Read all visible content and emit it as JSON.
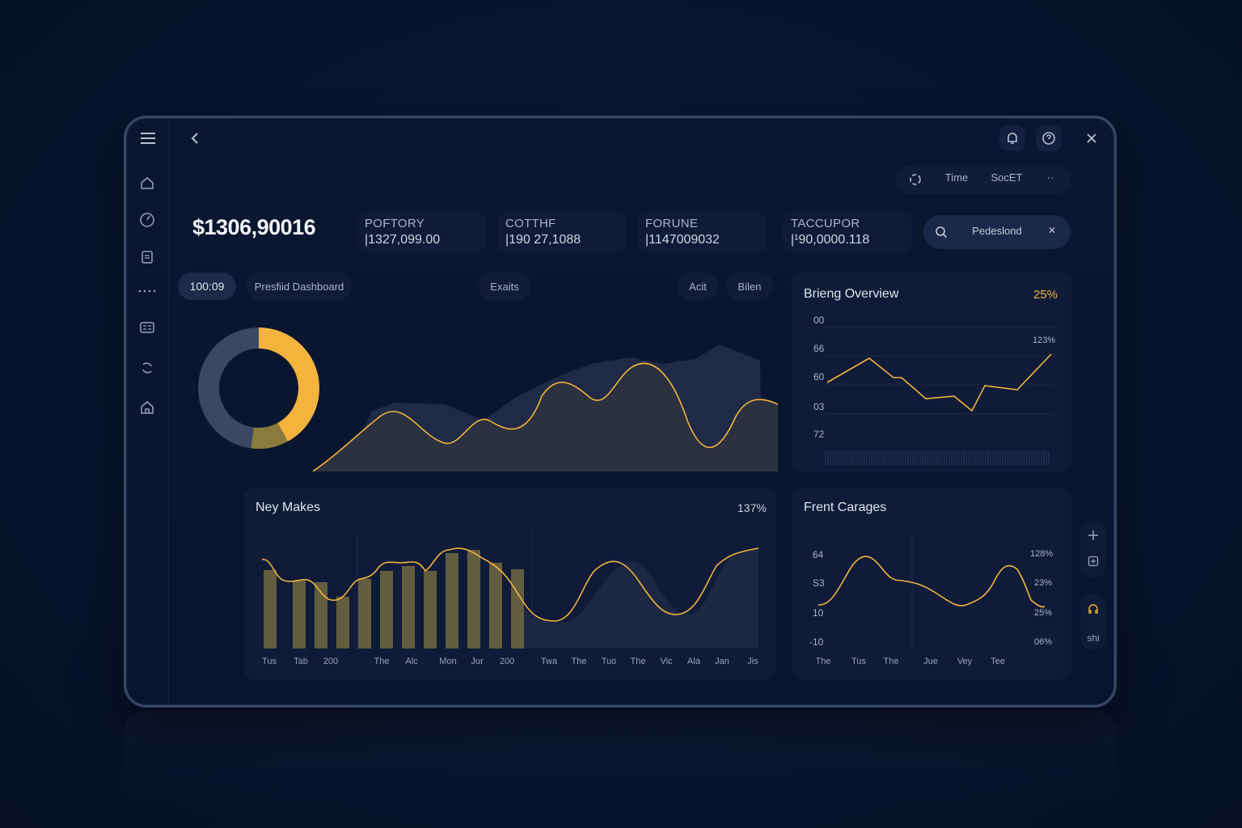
{
  "header": {
    "total_value": "$1306,90016",
    "top_right": {
      "toggle_label": "Time",
      "sort_label": "SocET",
      "more_label": "··"
    },
    "search": {
      "placeholder": "Pedeslond",
      "clear_symbol": "✕"
    }
  },
  "stat_cards": [
    {
      "label": "POFTORY",
      "value": "|1327,099.00"
    },
    {
      "label": "COTTHF",
      "value": "|190 27,1088"
    },
    {
      "label": "FORUNE",
      "value": "|1147009032"
    },
    {
      "label": "TACCUPOR",
      "value": "|¹90,0000.118"
    }
  ],
  "toolbar": {
    "value_pill": "100:09",
    "dashboard_pill": "Presfiid Dashboard",
    "exits_pill": "Exaits",
    "act_pill": "Acit",
    "bilen_pill": "Bilen"
  },
  "colors": {
    "accent": "#f3b33d",
    "accent_dim": "#8a7a3c",
    "panel": "#0f1b38",
    "ring_track": "#3a4865"
  },
  "main_chart": {
    "type": "area",
    "donut_fraction": 0.42,
    "donut_dim_fraction": 0.1
  },
  "briefing": {
    "title": "Brieng Overview",
    "pct": "25%",
    "annotation": "123%",
    "y_labels": [
      "00",
      "66",
      "60",
      "03",
      "72"
    ]
  },
  "ney_makes": {
    "title": "Ney Makes",
    "pct": "137%",
    "x_labels": [
      "Tus",
      "Tab",
      "200",
      "The",
      "Alc",
      "Mon",
      "Jur",
      "200",
      "Twa",
      "The",
      "Tuo",
      "The",
      "Vic",
      "Ala",
      "Jan",
      "Jis"
    ]
  },
  "frent_carages": {
    "title": "Frent Carages",
    "y_labels": [
      "64",
      "S3",
      "10",
      "-10"
    ],
    "right_labels": [
      "128%",
      "23%",
      "25%",
      "06%"
    ],
    "x_labels": [
      "The",
      "Tus",
      "The",
      "Jue",
      "Vey",
      "Tee"
    ]
  },
  "right_rail": {
    "label": "shi"
  },
  "icons": {
    "menu": "menu-icon",
    "back": "chevron-left-icon",
    "bell": "bell-icon",
    "help": "help-icon",
    "close": "close-icon",
    "search": "search-icon"
  }
}
